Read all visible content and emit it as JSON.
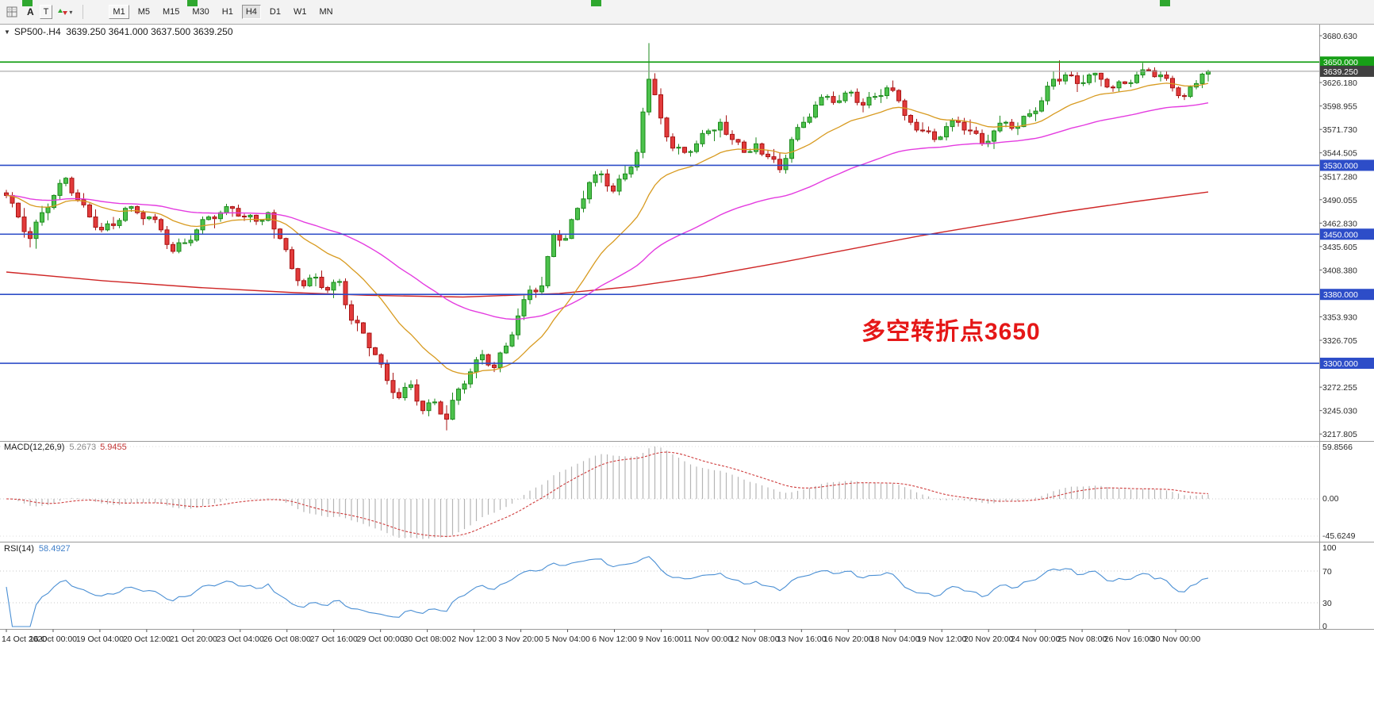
{
  "toolbar": {
    "letter_tool": "A",
    "text_tool": "T",
    "timeframes": [
      "M1",
      "M5",
      "M15",
      "M30",
      "H1",
      "H4",
      "D1",
      "W1",
      "MN"
    ],
    "active": "H4",
    "framed": "M1"
  },
  "chart": {
    "title": {
      "symbol": "SP500-.H4",
      "ohlc": "3639.250 3641.000 3637.500 3639.250"
    },
    "annotation": "多空转折点3650"
  },
  "colors": {
    "bull": "#4cc24c",
    "bull_edge": "#1d8a1d",
    "bear": "#e23b3b",
    "bear_edge": "#a81414",
    "ma_fast": "#d89b21",
    "ma_mid": "#e43ce0",
    "ma_slow": "#cf2626",
    "level_blue": "#2d4dc8",
    "level_green": "#17a017",
    "current_bg": "#404040",
    "current_line": "#9a9a9a",
    "macd_hist": "#b5b5b5",
    "macd_signal": "#cf3d3d",
    "rsi_line": "#4a8fd4",
    "annotation": "#e51717",
    "marker_green": "#2fa72f"
  },
  "chart_data": {
    "type": "candlestick",
    "symbol": "SP500-",
    "period": "H4",
    "ohlc_current": {
      "open": 3639.25,
      "high": 3641.0,
      "low": 3637.5,
      "close": 3639.25
    },
    "first_open": 3498,
    "closes": [
      3495,
      3486,
      3470,
      3453,
      3445,
      3464,
      3475,
      3481,
      3495,
      3509,
      3515,
      3498,
      3490,
      3484,
      3470,
      3458,
      3455,
      3462,
      3460,
      3466,
      3480,
      3482,
      3475,
      3468,
      3470,
      3467,
      3455,
      3438,
      3430,
      3440,
      3440,
      3443,
      3455,
      3467,
      3470,
      3468,
      3475,
      3482,
      3480,
      3471,
      3470,
      3472,
      3465,
      3466,
      3475,
      3456,
      3445,
      3432,
      3410,
      3396,
      3390,
      3399,
      3400,
      3388,
      3385,
      3394,
      3395,
      3368,
      3350,
      3347,
      3335,
      3318,
      3310,
      3299,
      3280,
      3266,
      3260,
      3272,
      3275,
      3256,
      3245,
      3254,
      3255,
      3241,
      3235,
      3257,
      3270,
      3276,
      3290,
      3304,
      3310,
      3298,
      3295,
      3312,
      3320,
      3333,
      3355,
      3374,
      3385,
      3383,
      3390,
      3424,
      3450,
      3443,
      3445,
      3467,
      3480,
      3491,
      3510,
      3519,
      3520,
      3506,
      3500,
      3514,
      3520,
      3528,
      3545,
      3592,
      3630,
      3612,
      3585,
      3563,
      3550,
      3551,
      3545,
      3546,
      3555,
      3567,
      3570,
      3571,
      3580,
      3566,
      3560,
      3557,
      3545,
      3546,
      3555,
      3543,
      3540,
      3537,
      3525,
      3538,
      3560,
      3574,
      3580,
      3586,
      3600,
      3609,
      3610,
      3603,
      3605,
      3614,
      3615,
      3603,
      3600,
      3609,
      3610,
      3611,
      3620,
      3617,
      3605,
      3588,
      3580,
      3571,
      3570,
      3569,
      3560,
      3563,
      3575,
      3582,
      3580,
      3571,
      3570,
      3567,
      3555,
      3558,
      3570,
      3579,
      3580,
      3573,
      3575,
      3587,
      3590,
      3593,
      3605,
      3622,
      3630,
      3628,
      3635,
      3634,
      3625,
      3626,
      3635,
      3637,
      3630,
      3621,
      3620,
      3627,
      3625,
      3626,
      3635,
      3641,
      3640,
      3633,
      3635,
      3631,
      3620,
      3611,
      3610,
      3621,
      3625,
      3636,
      3639.25
    ],
    "wick_overrides": {
      "74": {
        "low": 3222
      },
      "108": {
        "high": 3672
      },
      "177": {
        "high": 3652
      },
      "191": {
        "high": 3649
      }
    },
    "levels": [
      {
        "price": 3650,
        "label": "3650.000",
        "color_key": "level_green"
      },
      {
        "price": 3530,
        "label": "3530.000",
        "color_key": "level_blue"
      },
      {
        "price": 3450,
        "label": "3450.000",
        "color_key": "level_blue"
      },
      {
        "price": 3380,
        "label": "3380.000",
        "color_key": "level_blue"
      },
      {
        "price": 3300,
        "label": "3300.000",
        "color_key": "level_blue"
      }
    ],
    "current_price": {
      "value": 3639.25,
      "label": "3639.250"
    },
    "price_ticks": [
      3680.63,
      3626.18,
      3598.955,
      3571.73,
      3544.505,
      3517.28,
      3490.055,
      3462.83,
      3435.605,
      3408.38,
      3353.93,
      3326.705,
      3272.255,
      3245.03,
      3217.805
    ],
    "moving_averages": {
      "fast_period": 20,
      "mid_period": 60,
      "slow_points": [
        [
          0.0,
          3406
        ],
        [
          0.08,
          3396
        ],
        [
          0.16,
          3388
        ],
        [
          0.24,
          3382
        ],
        [
          0.3,
          3379
        ],
        [
          0.38,
          3377
        ],
        [
          0.46,
          3381
        ],
        [
          0.52,
          3389
        ],
        [
          0.58,
          3401
        ],
        [
          0.64,
          3416
        ],
        [
          0.7,
          3432
        ],
        [
          0.76,
          3448
        ],
        [
          0.82,
          3462
        ],
        [
          0.88,
          3476
        ],
        [
          0.94,
          3488
        ],
        [
          1.0,
          3499
        ]
      ]
    },
    "time_labels": [
      "14 Oct 2020",
      "16 Oct 00:00",
      "19 Oct 04:00",
      "20 Oct 12:00",
      "21 Oct 20:00",
      "23 Oct 04:00",
      "26 Oct 08:00",
      "27 Oct 16:00",
      "29 Oct 00:00",
      "30 Oct 08:00",
      "2 Nov 12:00",
      "3 Nov 20:00",
      "5 Nov 04:00",
      "6 Nov 12:00",
      "9 Nov 16:00",
      "11 Nov 00:00",
      "12 Nov 08:00",
      "13 Nov 16:00",
      "16 Nov 20:00",
      "18 Nov 04:00",
      "19 Nov 12:00",
      "20 Nov 20:00",
      "24 Nov 00:00",
      "25 Nov 08:00",
      "26 Nov 16:00",
      "30 Nov 00:00"
    ],
    "macd": {
      "name": "MACD(12,26,9)",
      "value_main": "5.2673",
      "value_signal": "5.9455",
      "fast": 12,
      "slow": 26,
      "signal": 9,
      "axis": [
        "59.8566",
        "0.00",
        "-45.6249"
      ]
    },
    "rsi": {
      "name": "RSI(14)",
      "value": "58.4927",
      "period": 14,
      "axis": [
        "100",
        "70",
        "30",
        "0"
      ],
      "levels": [
        70,
        30
      ]
    }
  }
}
